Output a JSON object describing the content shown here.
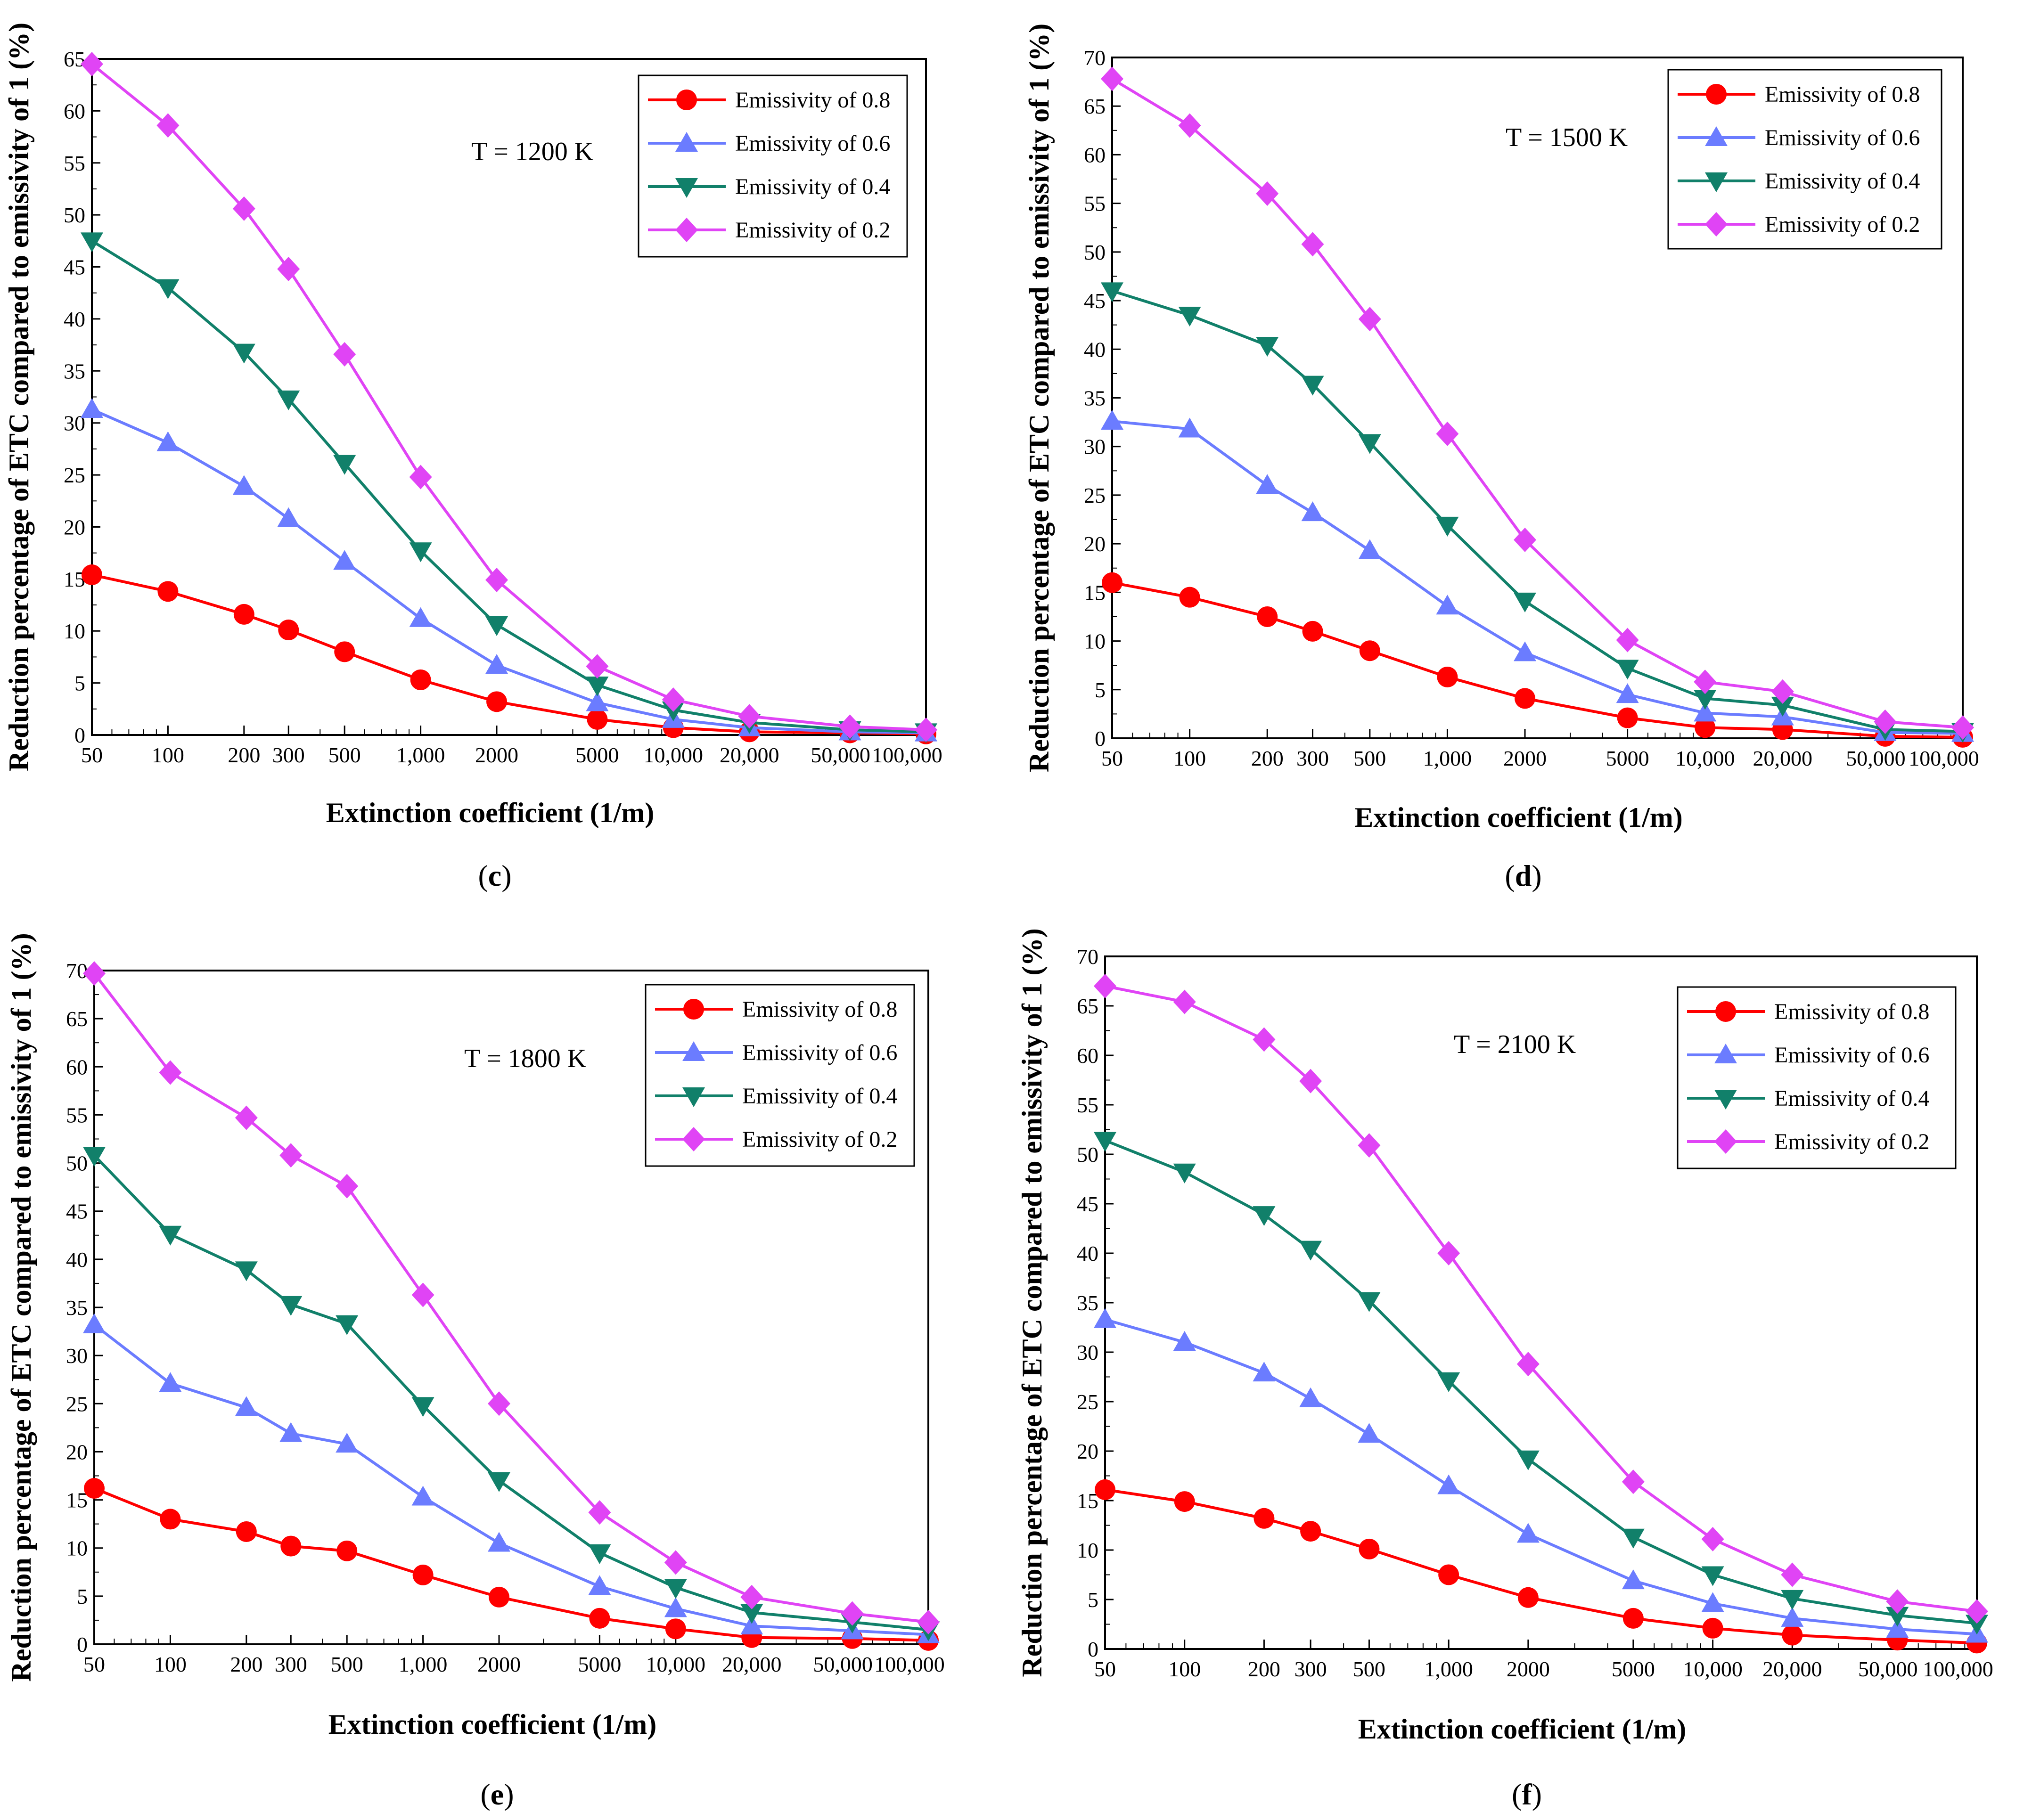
{
  "colors": {
    "emissivity_0_8": "#ff0000",
    "emissivity_0_6": "#6b7cff",
    "emissivity_0_4": "#11806a",
    "emissivity_0_2": "#e044f5"
  },
  "markers": {
    "emissivity_0_8": "circle",
    "emissivity_0_6": "triangle-up",
    "emissivity_0_4": "triangle-down",
    "emissivity_0_2": "diamond"
  },
  "chart_data": [
    {
      "type": "line",
      "panel": "c",
      "annotation": "T = 1200 K",
      "xlabel": "Extinction coefficient (1/m)",
      "ylabel": "Reduction percentage of ETC compared to emissivity of 1 (%)",
      "xscale": "log",
      "xlim": [
        50,
        100000
      ],
      "ylim": [
        0,
        65
      ],
      "yticks": [
        0,
        5,
        10,
        15,
        20,
        25,
        30,
        35,
        40,
        45,
        50,
        55,
        60,
        65
      ],
      "xticks": [
        50,
        100,
        200,
        300,
        500,
        1000,
        2000,
        5000,
        10000,
        20000,
        50000,
        100000
      ],
      "xtick_labels": [
        "50",
        "100",
        "200",
        "300",
        "500",
        "1,000",
        "2000",
        "5000",
        "10,000",
        "20,000",
        "50,000",
        "100,000"
      ],
      "legend_position": "top-right",
      "x": [
        50,
        100,
        200,
        300,
        500,
        1000,
        2000,
        5000,
        10000,
        20000,
        50000,
        100000
      ],
      "series": [
        {
          "name": "Emissivity of 0.8",
          "values": [
            15.4,
            13.8,
            11.6,
            10.1,
            8.0,
            5.3,
            3.2,
            1.5,
            0.7,
            0.3,
            0.2,
            0.1
          ]
        },
        {
          "name": "Emissivity of 0.6",
          "values": [
            31.3,
            28.1,
            23.9,
            20.8,
            16.7,
            11.2,
            6.7,
            3.1,
            1.5,
            0.7,
            0.3,
            0.2
          ]
        },
        {
          "name": "Emissivity of 0.4",
          "values": [
            47.5,
            43.0,
            36.8,
            32.3,
            26.1,
            17.7,
            10.6,
            4.8,
            2.4,
            1.2,
            0.5,
            0.3
          ]
        },
        {
          "name": "Emissivity of 0.2",
          "values": [
            64.5,
            58.6,
            50.6,
            44.8,
            36.6,
            24.8,
            14.9,
            6.6,
            3.4,
            1.8,
            0.8,
            0.5
          ]
        }
      ]
    },
    {
      "type": "line",
      "panel": "d",
      "annotation": "T = 1500 K",
      "xlabel": "Extinction coefficient (1/m)",
      "ylabel": "Reduction percentage of ETC compared to emissivity of 1 (%)",
      "xscale": "log",
      "xlim": [
        50,
        100000
      ],
      "ylim": [
        0,
        70
      ],
      "yticks": [
        0,
        5,
        10,
        15,
        20,
        25,
        30,
        35,
        40,
        45,
        50,
        55,
        60,
        65,
        70
      ],
      "xticks": [
        50,
        100,
        200,
        300,
        500,
        1000,
        2000,
        5000,
        10000,
        20000,
        50000,
        100000
      ],
      "xtick_labels": [
        "50",
        "100",
        "200",
        "300",
        "500",
        "1,000",
        "2000",
        "5000",
        "10,000",
        "20,000",
        "50,000",
        "100,000"
      ],
      "legend_position": "top-right",
      "x": [
        50,
        100,
        200,
        300,
        500,
        1000,
        2000,
        5000,
        10000,
        20000,
        50000,
        100000
      ],
      "series": [
        {
          "name": "Emissivity of 0.8",
          "values": [
            16.0,
            14.5,
            12.5,
            11.0,
            9.0,
            6.3,
            4.1,
            2.1,
            1.1,
            0.9,
            0.2,
            0.1
          ]
        },
        {
          "name": "Emissivity of 0.6",
          "values": [
            32.6,
            31.8,
            26.0,
            23.2,
            19.3,
            13.6,
            8.8,
            4.5,
            2.6,
            2.2,
            0.6,
            0.5
          ]
        },
        {
          "name": "Emissivity of 0.4",
          "values": [
            46.0,
            43.5,
            40.4,
            36.4,
            30.4,
            21.9,
            14.1,
            7.2,
            4.1,
            3.4,
            0.9,
            0.7
          ]
        },
        {
          "name": "Emissivity of 0.2",
          "values": [
            67.8,
            63.0,
            56.0,
            50.8,
            43.1,
            31.3,
            20.4,
            10.1,
            5.8,
            4.8,
            1.7,
            1.1
          ]
        }
      ]
    },
    {
      "type": "line",
      "panel": "e",
      "annotation": "T = 1800 K",
      "xlabel": "Extinction coefficient (1/m)",
      "ylabel": "Reduction percentage of ETC compared to emissivity of 1 (%)",
      "xscale": "log",
      "xlim": [
        50,
        100000
      ],
      "ylim": [
        0,
        70
      ],
      "yticks": [
        0,
        5,
        10,
        15,
        20,
        25,
        30,
        35,
        40,
        45,
        50,
        55,
        60,
        65,
        70
      ],
      "xticks": [
        50,
        100,
        200,
        300,
        500,
        1000,
        2000,
        5000,
        10000,
        20000,
        50000,
        100000
      ],
      "xtick_labels": [
        "50",
        "100",
        "200",
        "300",
        "500",
        "1,000",
        "2000",
        "5000",
        "10,000",
        "20,000",
        "50,000",
        "100,000"
      ],
      "legend_position": "top-right",
      "x": [
        50,
        100,
        200,
        300,
        500,
        1000,
        2000,
        5000,
        10000,
        20000,
        50000,
        100000
      ],
      "series": [
        {
          "name": "Emissivity of 0.8",
          "values": [
            16.2,
            13.0,
            11.7,
            10.2,
            9.7,
            7.2,
            4.9,
            2.7,
            1.6,
            0.7,
            0.6,
            0.4
          ]
        },
        {
          "name": "Emissivity of 0.6",
          "values": [
            33.2,
            27.1,
            24.6,
            21.9,
            20.8,
            15.3,
            10.5,
            6.0,
            3.7,
            1.9,
            1.4,
            1.0
          ]
        },
        {
          "name": "Emissivity of 0.4",
          "values": [
            50.8,
            42.6,
            38.9,
            35.3,
            33.3,
            24.8,
            17.0,
            9.5,
            5.9,
            3.3,
            2.3,
            1.5
          ]
        },
        {
          "name": "Emissivity of 0.2",
          "values": [
            69.7,
            59.4,
            54.7,
            50.8,
            47.6,
            36.3,
            25.0,
            13.7,
            8.5,
            4.9,
            3.2,
            2.3
          ]
        }
      ]
    },
    {
      "type": "line",
      "panel": "f",
      "annotation": "T = 2100 K",
      "xlabel": "Extinction coefficient  (1/m)",
      "ylabel": "Reduction percentage of ETC compared to emissivity of 1 (%)",
      "xscale": "log",
      "xlim": [
        50,
        100000
      ],
      "ylim": [
        0,
        70
      ],
      "yticks": [
        0,
        5,
        10,
        15,
        20,
        25,
        30,
        35,
        40,
        45,
        50,
        55,
        60,
        65,
        70
      ],
      "xticks": [
        50,
        100,
        200,
        300,
        500,
        1000,
        2000,
        5000,
        10000,
        20000,
        50000,
        100000
      ],
      "xtick_labels": [
        "50",
        "100",
        "200",
        "300",
        "500",
        "1,000",
        "2000",
        "5000",
        "10,000",
        "20,000",
        "50,000",
        "100,000"
      ],
      "legend_position": "top-right",
      "x": [
        50,
        100,
        200,
        300,
        500,
        1000,
        2000,
        5000,
        10000,
        20000,
        50000,
        100000
      ],
      "series": [
        {
          "name": "Emissivity of 0.8",
          "values": [
            16.1,
            14.9,
            13.2,
            11.9,
            10.1,
            7.5,
            5.2,
            3.1,
            2.1,
            1.4,
            0.9,
            0.6
          ]
        },
        {
          "name": "Emissivity of 0.6",
          "values": [
            33.3,
            31.0,
            27.9,
            25.3,
            21.7,
            16.5,
            11.6,
            6.9,
            4.6,
            3.1,
            2.0,
            1.5
          ]
        },
        {
          "name": "Emissivity of 0.4",
          "values": [
            51.4,
            48.2,
            43.9,
            40.4,
            35.2,
            27.1,
            19.2,
            11.3,
            7.5,
            5.1,
            3.4,
            2.6
          ]
        },
        {
          "name": "Emissivity of 0.2",
          "values": [
            67.0,
            65.4,
            61.6,
            57.4,
            50.9,
            40.0,
            28.8,
            16.9,
            11.1,
            7.5,
            4.8,
            3.8
          ]
        }
      ]
    }
  ]
}
